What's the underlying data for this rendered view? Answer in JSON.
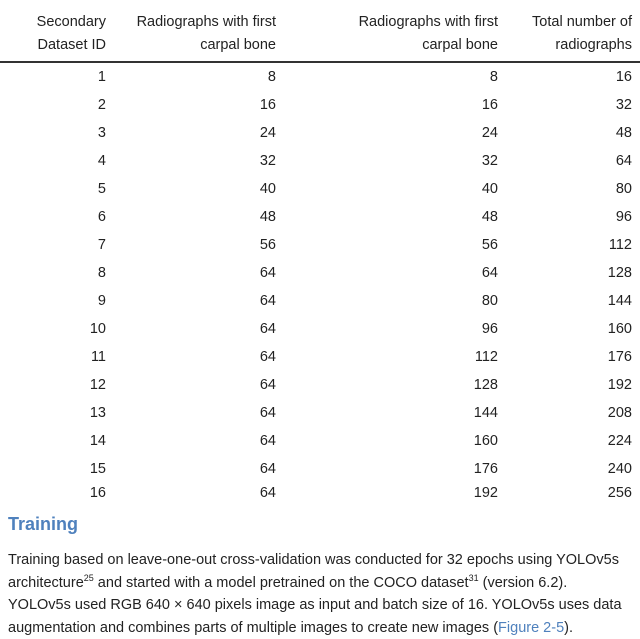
{
  "table": {
    "headers": [
      [
        "Secondary",
        "Dataset ID"
      ],
      [
        "Radiographs with first",
        "carpal bone"
      ],
      [
        "Radiographs with first",
        "carpal bone"
      ],
      [
        "Total number of",
        "radiographs"
      ]
    ],
    "rows": [
      [
        "1",
        "8",
        "8",
        "16"
      ],
      [
        "2",
        "16",
        "16",
        "32"
      ],
      [
        "3",
        "24",
        "24",
        "48"
      ],
      [
        "4",
        "32",
        "32",
        "64"
      ],
      [
        "5",
        "40",
        "40",
        "80"
      ],
      [
        "6",
        "48",
        "48",
        "96"
      ],
      [
        "7",
        "56",
        "56",
        "112"
      ],
      [
        "8",
        "64",
        "64",
        "128"
      ],
      [
        "9",
        "64",
        "80",
        "144"
      ],
      [
        "10",
        "64",
        "96",
        "160"
      ],
      [
        "11",
        "64",
        "112",
        "176"
      ],
      [
        "12",
        "64",
        "128",
        "192"
      ],
      [
        "13",
        "64",
        "144",
        "208"
      ],
      [
        "14",
        "64",
        "160",
        "224"
      ],
      [
        "15",
        "64",
        "176",
        "240"
      ],
      [
        "16",
        "64",
        "192",
        "256"
      ]
    ]
  },
  "section": {
    "heading": "Training",
    "lines": [
      {
        "text": "Training based on leave-one-out cross-validation was conducted for 32 epochs using YOLOv5s"
      },
      {
        "text": "architecture",
        "sup1": "25",
        "mid": " and started with a model pretrained on the COCO dataset",
        "sup2": "31",
        "end": " (version 6.2)."
      },
      {
        "text": "YOLOv5s used RGB 640 × 640 pixels image as input and batch size of 16. YOLOv5s uses data"
      },
      {
        "text": "augmentation and combines parts of multiple images to create new images (",
        "link": "Figure 2-5",
        "end": ")."
      }
    ]
  }
}
